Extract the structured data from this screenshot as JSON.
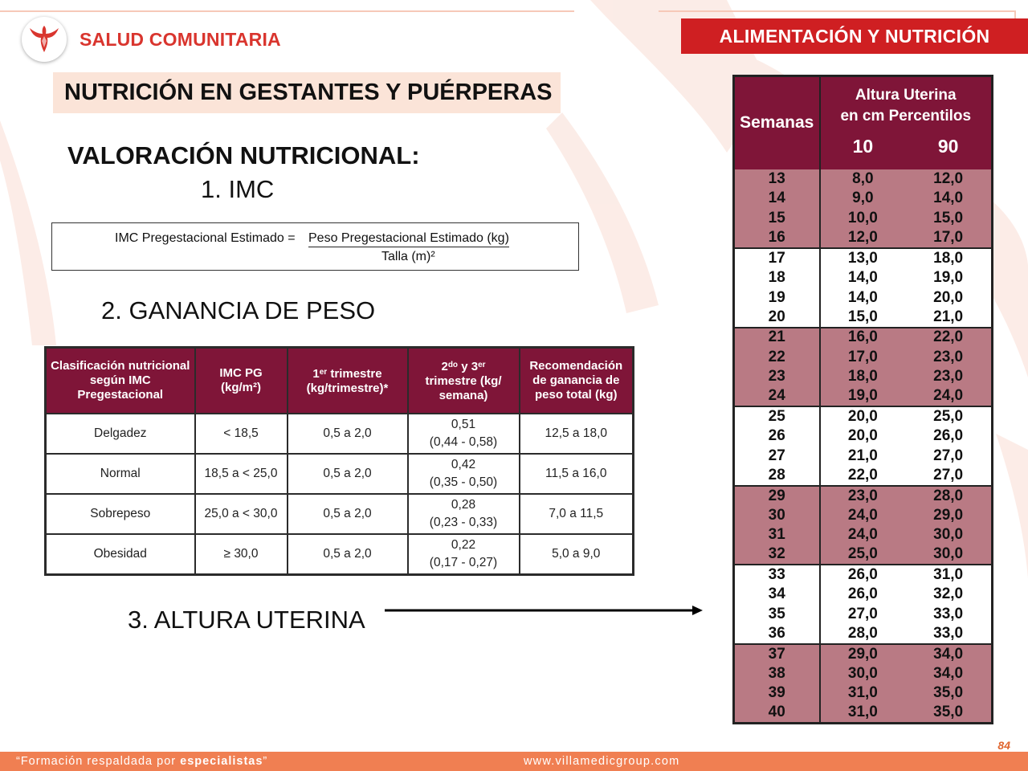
{
  "header": {
    "brand": "SALUD COMUNITARIA",
    "section": "ALIMENTACIÓN Y NUTRICIÓN",
    "subtitle": "NUTRICIÓN EN GESTANTES Y PUÉRPERAS"
  },
  "content": {
    "heading": "VALORACIÓN NUTRICIONAL:",
    "item1": "1.  IMC",
    "item2": "2. GANANCIA DE PESO",
    "item3": "3. ALTURA UTERINA",
    "formula": {
      "lhs": "IMC Pregestacional Estimado = ",
      "numerator": "Peso Pregestacional Estimado (kg)",
      "denominator": "Talla (m)²"
    }
  },
  "weight_gain_table": {
    "headers": {
      "c1": "Clasificación nutricional según IMC Pregestacional",
      "c2a": "IMC PG",
      "c2b": "(kg/m²)",
      "c3_sup": "er",
      "c3a": "1",
      "c3b": " trimestre",
      "c3c": "(kg/trimestre)*",
      "c4a": "2",
      "c4_sup1": "do",
      "c4b": " y 3",
      "c4_sup2": "er",
      "c4c": "trimestre (kg/ semana)",
      "c5": "Recomendación de ganancia de peso total (kg)"
    },
    "rows": [
      {
        "cls": "Delgadez",
        "imc": "< 18,5",
        "t1": "0,5 a 2,0",
        "t23a": "0,51",
        "t23b": "(0,44 - 0,58)",
        "total": "12,5 a 18,0"
      },
      {
        "cls": "Normal",
        "imc": "18,5 a < 25,0",
        "t1": "0,5 a 2,0",
        "t23a": "0,42",
        "t23b": "(0,35 - 0,50)",
        "total": "11,5 a 16,0"
      },
      {
        "cls": "Sobrepeso",
        "imc": "25,0 a < 30,0",
        "t1": "0,5 a 2,0",
        "t23a": "0,28",
        "t23b": "(0,23 - 0,33)",
        "total": "7,0 a 11,5"
      },
      {
        "cls": "Obesidad",
        "imc": "≥ 30,0",
        "t1": "0,5 a 2,0",
        "t23a": "0,22",
        "t23b": "(0,17 - 0,27)",
        "total": "5,0 a 9,0"
      }
    ]
  },
  "uterine_table": {
    "h_weeks": "Semanas",
    "h_title1": "Altura Uterina",
    "h_title2": "en cm Percentilos",
    "h_p10": "10",
    "h_p90": "90",
    "rows": [
      {
        "w": "13",
        "p10": "8,0",
        "p90": "12,0"
      },
      {
        "w": "14",
        "p10": "9,0",
        "p90": "14,0"
      },
      {
        "w": "15",
        "p10": "10,0",
        "p90": "15,0"
      },
      {
        "w": "16",
        "p10": "12,0",
        "p90": "17,0"
      },
      {
        "w": "17",
        "p10": "13,0",
        "p90": "18,0"
      },
      {
        "w": "18",
        "p10": "14,0",
        "p90": "19,0"
      },
      {
        "w": "19",
        "p10": "14,0",
        "p90": "20,0"
      },
      {
        "w": "20",
        "p10": "15,0",
        "p90": "21,0"
      },
      {
        "w": "21",
        "p10": "16,0",
        "p90": "22,0"
      },
      {
        "w": "22",
        "p10": "17,0",
        "p90": "23,0"
      },
      {
        "w": "23",
        "p10": "18,0",
        "p90": "23,0"
      },
      {
        "w": "24",
        "p10": "19,0",
        "p90": "24,0"
      },
      {
        "w": "25",
        "p10": "20,0",
        "p90": "25,0"
      },
      {
        "w": "26",
        "p10": "20,0",
        "p90": "26,0"
      },
      {
        "w": "27",
        "p10": "21,0",
        "p90": "27,0"
      },
      {
        "w": "28",
        "p10": "22,0",
        "p90": "27,0"
      },
      {
        "w": "29",
        "p10": "23,0",
        "p90": "28,0"
      },
      {
        "w": "30",
        "p10": "24,0",
        "p90": "29,0"
      },
      {
        "w": "31",
        "p10": "24,0",
        "p90": "30,0"
      },
      {
        "w": "32",
        "p10": "25,0",
        "p90": "30,0"
      },
      {
        "w": "33",
        "p10": "26,0",
        "p90": "31,0"
      },
      {
        "w": "34",
        "p10": "26,0",
        "p90": "32,0"
      },
      {
        "w": "35",
        "p10": "27,0",
        "p90": "33,0"
      },
      {
        "w": "36",
        "p10": "28,0",
        "p90": "33,0"
      },
      {
        "w": "37",
        "p10": "29,0",
        "p90": "34,0"
      },
      {
        "w": "38",
        "p10": "30,0",
        "p90": "34,0"
      },
      {
        "w": "39",
        "p10": "31,0",
        "p90": "35,0"
      },
      {
        "w": "40",
        "p10": "31,0",
        "p90": "35,0"
      }
    ]
  },
  "footer": {
    "quote_open": "“Formación respaldada por ",
    "quote_bold": "especialistas",
    "quote_close": "”",
    "website": "www.villamedicgroup.com",
    "page": "84"
  },
  "colors": {
    "brand_red": "#cf1f22",
    "table_header": "#7f1538",
    "row_shade": "#b97a84",
    "footer_orange": "#f07f52",
    "subtitle_bg": "#fbe4d8"
  }
}
